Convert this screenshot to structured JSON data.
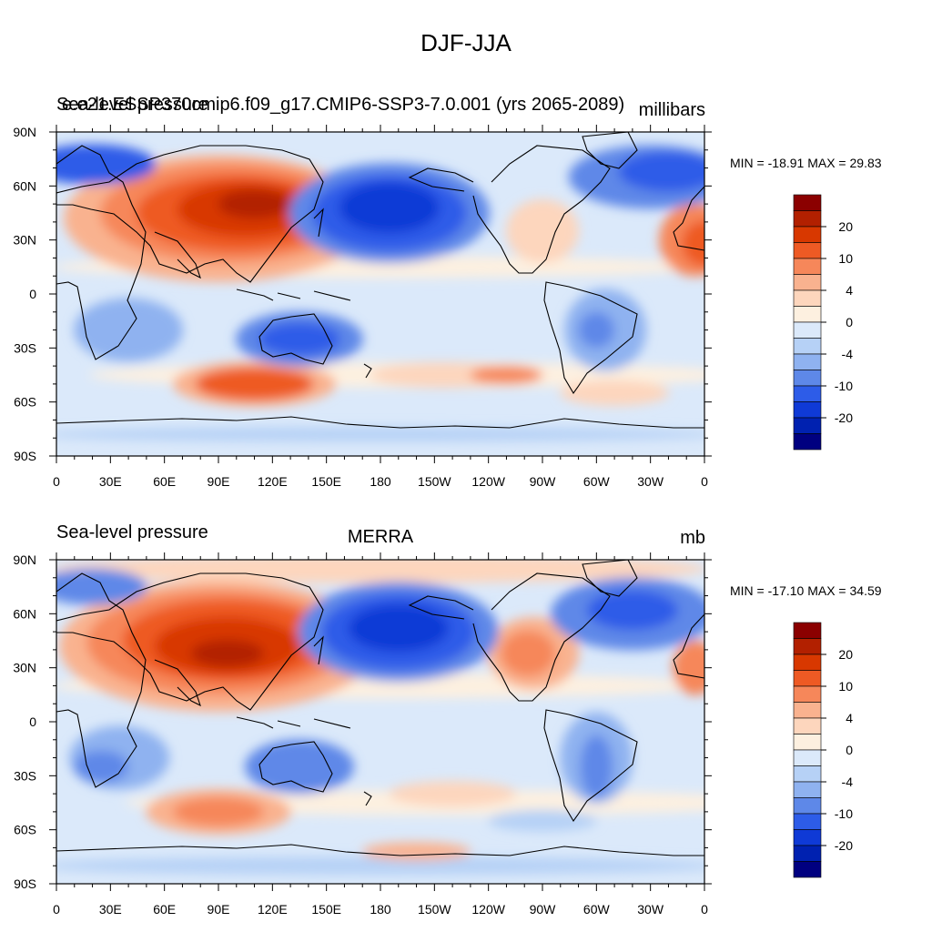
{
  "title": "DJF-JJA",
  "panels": [
    {
      "left_title": "Sea-level pressure",
      "center_title": "e.e21.ESSP370cmip6.f09_g17.CMIP6-SSP3-7.0.001 (yrs 2065-2089)",
      "right_title": "millibars",
      "stats": "MIN = -18.91 MAX =  29.83"
    },
    {
      "left_title": "Sea-level pressure",
      "center_title": "MERRA",
      "right_title": "mb",
      "stats": "MIN = -17.10 MAX =  34.59"
    }
  ],
  "lat_labels": [
    "90N",
    "60N",
    "30N",
    "0",
    "30S",
    "60S",
    "90S"
  ],
  "lon_labels": [
    "0",
    "30E",
    "60E",
    "90E",
    "120E",
    "150E",
    "180",
    "150W",
    "120W",
    "90W",
    "60W",
    "30W",
    "0"
  ],
  "colorbar": {
    "labels": [
      "20",
      "10",
      "4",
      "0",
      "-4",
      "-10",
      "-20"
    ],
    "colors": [
      "#8b0000",
      "#b22000",
      "#d83800",
      "#ee5a24",
      "#f6875a",
      "#f9b28f",
      "#fdd6bd",
      "#fdf0e0",
      "#dbe9fa",
      "#b6d1f6",
      "#8fb2f0",
      "#5e88e8",
      "#2d5ce8",
      "#0f3ad6",
      "#0021b0",
      "#000080"
    ]
  },
  "map_data": {
    "lon_range": [
      0,
      360
    ],
    "lat_range": [
      -90,
      90
    ],
    "features_panel1": [
      {
        "type": "high",
        "region": "Eurasia",
        "lon": 100,
        "lat": 45,
        "level": 20
      },
      {
        "type": "high",
        "region": "Southern Ocean south of Australia",
        "lon": 110,
        "lat": -50,
        "level": 10
      },
      {
        "type": "high",
        "region": "North Atlantic",
        "lon": 345,
        "lat": 30,
        "level": 10
      },
      {
        "type": "low",
        "region": "North Pacific (Aleutian)",
        "lon": 185,
        "lat": 45,
        "level": -20
      },
      {
        "type": "low",
        "region": "North Atlantic (Icelandic)",
        "lon": 330,
        "lat": 60,
        "level": -10
      },
      {
        "type": "low",
        "region": "Arctic Siberia",
        "lon": 20,
        "lat": 70,
        "level": -10
      },
      {
        "type": "low",
        "region": "Australia",
        "lon": 135,
        "lat": -25,
        "level": -10
      }
    ],
    "features_panel2": [
      {
        "type": "high",
        "region": "Eurasia",
        "lon": 95,
        "lat": 45,
        "level": 20
      },
      {
        "type": "high",
        "region": "Southern Ocean",
        "lon": 90,
        "lat": -50,
        "level": 10
      },
      {
        "type": "high",
        "region": "North America",
        "lon": 255,
        "lat": 40,
        "level": 4
      },
      {
        "type": "low",
        "region": "North Pacific (Aleutian)",
        "lon": 190,
        "lat": 50,
        "level": -20
      },
      {
        "type": "low",
        "region": "North Atlantic (Icelandic)",
        "lon": 320,
        "lat": 60,
        "level": -10
      },
      {
        "type": "low",
        "region": "Australia",
        "lon": 135,
        "lat": -25,
        "level": -10
      },
      {
        "type": "low",
        "region": "South America",
        "lon": 300,
        "lat": -20,
        "level": -10
      }
    ]
  }
}
